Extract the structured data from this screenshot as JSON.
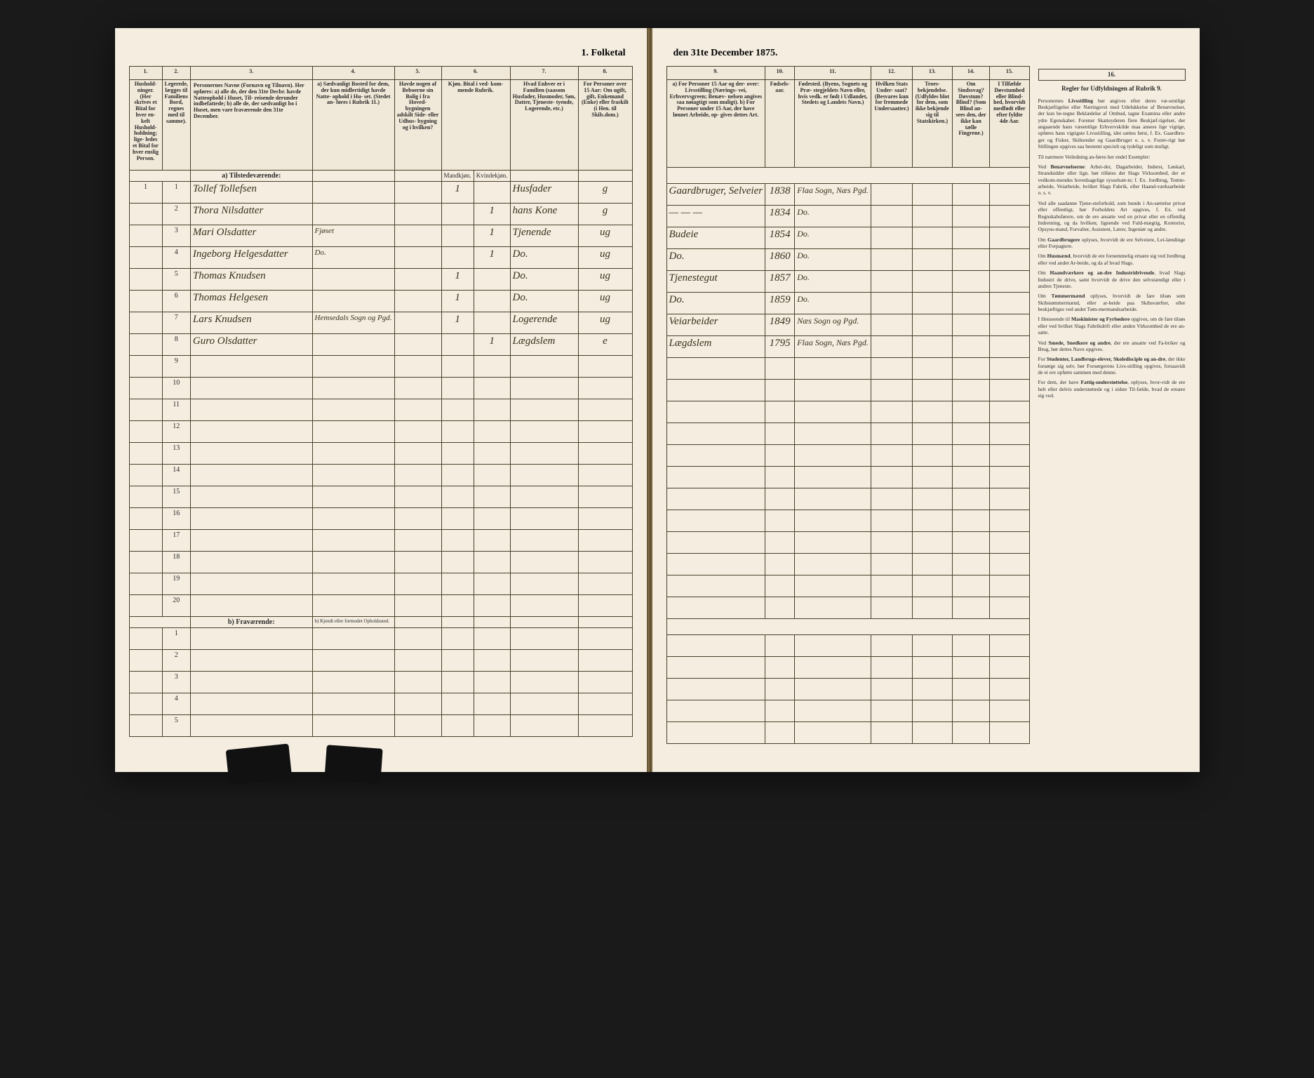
{
  "title_left": "1. Folketal",
  "title_right": "den 31te December 1875.",
  "left_columns": {
    "nums": [
      "1.",
      "2.",
      "3.",
      "4.",
      "5.",
      "6.",
      "7.",
      "8."
    ],
    "heads": [
      "Hushold-\nninger.\n(Her skrives et\nBital for hver en-\nkelt Hushold-\nholdning; lige-\nledes et Bital for\nhver enslig\nPerson.",
      "Legerede,\nlægges til\nFamiliens\nBord, regnes\nmed til\nsamme).",
      "Personernes Navne (Fornavn og Tilnavn).\nHer opføres:\na) alle de, der den 31te Decbr. havde Natteophold i Huset, Til-\nreisende derunder indbefattede;\nb) alle de, der sædvanligt bo i Huset, men vare fraværende\nden 31te December.",
      "a) Sædvanligt\nBosted for\ndem, der kun\nmidlertidigt\nhavde Natte-\nophold i Hu-\nset. (Stedet an-\nføres i Rubrik 11.)",
      "Havde nogen\naf Beboerne\nsin Bolig\ni fra Hoved-\nbygningen\nadskilt Side-\neller Udhus-\nbygning og i\nhvilken?",
      "Kjøn.\nBital i\nved-\nkom-\nmende\nRubrik.",
      "Hvad Enhver er\ni Familien\n(saasom Husfader,\nHusmoder, Søn,\nDatter, Tjeneste-\ntyende, Logerende,\netc.)",
      "For Personer\nover 15 Aar:\nOm ugift, gift,\nEnkemand\n(Enke) eller\nfraskilt\n(i Hen. til\nSkils.dom.)"
    ],
    "subheads": [
      "",
      "",
      "",
      "b) Kjendt eller\nformodet\nOpholdssted.",
      "",
      "Mandkjøn.",
      "Kvindekjøn.",
      ""
    ]
  },
  "right_columns": {
    "nums": [
      "9.",
      "10.",
      "11.",
      "12.",
      "13.",
      "14.",
      "15.",
      "16."
    ],
    "heads": [
      "a) For Personer 15 Aar og der-\nover: Livsstilling (Nærings-\nvei, Erhvervsgreen; Benæv-\nnelsen angives saa\nnøiagtigt som muligt).\nb) For Personer under 15 Aar,\nder have lønnet Arbeide, op-\ngives dettes Art.",
      "Fødsels-\naar.",
      "Fødested.\n(Byens, Sognets og Præ-\nstegjeldets Navn eller, hvis\nvedk. er født i Udlandet,\nStedets og Landets\nNavn.)",
      "Hvilken\nStats Under-\nsaat?\n(Besvares kun\nfor fremmede\nUndersaatter.)",
      "Troes-\nbekjendelse.\n(Udfyldes blot for\ndem, som ikke\nbekjende sig til\nStatskirken.)",
      "Om\nSindssvag?\nDøvstum?\nBlind?\n(Som Blind an-\nsees den, der\nikke kan tælle\nFingrene.)",
      "I Tilfælde\nDøvstumhed\neller Blind-\nhed, hvorvidt\nmedfødt\neller efter\nfyldte\n4de Aar.",
      "Regler for Udfyldningen\naf\nRubrik 9."
    ]
  },
  "section_a": "a) Tilstedeværende:",
  "section_b": "b) Fraværende:",
  "rows_a": [
    {
      "n": "1",
      "name": "Tollef Tollefsen",
      "c4": "",
      "c5": "",
      "m": "1",
      "k": "",
      "rel": "Husfader",
      "stat": "g",
      "occ": "Gaardbruger, Selveier",
      "year": "1838",
      "place": "Flaa Sogn, Næs Pgd.",
      "c12": "",
      "c13": "",
      "c14": "",
      "c15": ""
    },
    {
      "n": "2",
      "name": "Thora Nilsdatter",
      "c4": "",
      "c5": "",
      "m": "",
      "k": "1",
      "rel": "hans Kone",
      "stat": "g",
      "occ": "— — —",
      "year": "1834",
      "place": "Do.",
      "c12": "",
      "c13": "",
      "c14": "",
      "c15": ""
    },
    {
      "n": "3",
      "name": "Mari Olsdatter",
      "c4": "Fjøset",
      "c5": "",
      "m": "",
      "k": "1",
      "rel": "Tjenende",
      "stat": "ug",
      "occ": "Budeie",
      "year": "1854",
      "place": "Do.",
      "c12": "",
      "c13": "",
      "c14": "",
      "c15": ""
    },
    {
      "n": "4",
      "name": "Ingeborg Helgesdatter",
      "c4": "Do.",
      "c5": "",
      "m": "",
      "k": "1",
      "rel": "Do.",
      "stat": "ug",
      "occ": "Do.",
      "year": "1860",
      "place": "Do.",
      "c12": "",
      "c13": "",
      "c14": "",
      "c15": ""
    },
    {
      "n": "5",
      "name": "Thomas Knudsen",
      "c4": "",
      "c5": "",
      "m": "1",
      "k": "",
      "rel": "Do.",
      "stat": "ug",
      "occ": "Tjenestegut",
      "year": "1857",
      "place": "Do.",
      "c12": "",
      "c13": "",
      "c14": "",
      "c15": ""
    },
    {
      "n": "6",
      "name": "Thomas Helgesen",
      "c4": "",
      "c5": "",
      "m": "1",
      "k": "",
      "rel": "Do.",
      "stat": "ug",
      "occ": "Do.",
      "year": "1859",
      "place": "Do.",
      "c12": "",
      "c13": "",
      "c14": "",
      "c15": ""
    },
    {
      "n": "7",
      "name": "Lars Knudsen",
      "c4": "Hemsedals Sogn og Pgd.",
      "c5": "",
      "m": "1",
      "k": "",
      "rel": "Logerende",
      "stat": "ug",
      "occ": "Veiarbeider",
      "year": "1849",
      "place": "Næs Sogn og Pgd.",
      "c12": "",
      "c13": "",
      "c14": "",
      "c15": ""
    },
    {
      "n": "8",
      "name": "Guro Olsdatter",
      "c4": "",
      "c5": "",
      "m": "",
      "k": "1",
      "rel": "Lægdslem",
      "stat": "e",
      "occ": "Lægdslem",
      "year": "1795",
      "place": "Flaa Sogn, Næs Pgd.",
      "c12": "",
      "c13": "",
      "c14": "",
      "c15": ""
    }
  ],
  "empty_a": [
    "9",
    "10",
    "11",
    "12",
    "13",
    "14",
    "15",
    "16",
    "17",
    "18",
    "19",
    "20"
  ],
  "rows_b": [
    "1",
    "2",
    "3",
    "4",
    "5"
  ],
  "instructions": {
    "head": "Regler for Udfyldningen af Rubrik 9.",
    "paras": [
      "Personernes <b>Livsstilling</b> bør angives efter deres væ-sentlige Beskjæftigelse eller Næringsvei med Udelukkelse af Benævnelser, der kun be-tegne Beklædelse af Ombud, tagne Examina eller andre ydre Egenskaber. Forener Skatteyderen flere Beskjæf-tigelser, der angaaende hans væsentlige Erhvervskilde maa ansees lige vigtige, opføres hans vigtigste Livsstilling, idet sættes først, f. Ex. Gaardbru-ger og Fisker, Skibsreder og Gaardbruger o. s. v. Forøv-rigt bør Stillingen opgives saa bestemt specielt og tydeligt som muligt.",
      "Til nærmere Veiledning an-føres her endel Exempler:",
      "Ved <b>Benævnelserne</b>: Arbei-der, Dagarbeider, Inderst, Løskarl, Strandsidder eller lign. bør tilføies det Slags Virksombed, der er vedkom-mendes hovedsagelige sysselsæt-te; f. Ex. Jordbrug, Tomte-arbeide, Veiarbeide, hvilket Slags Fabrik, eller Haand-værksarbeide o. s. v.",
      "Ved alle saadanne Tjene-steforhold, som bunde i An-sættelse privat eller offentligt, bør Forholdets Art opgives, f. Ex. ved Regnskabsførere, om de ere ansatte ved en privat eller en offentlig Indretning, og da hvilken; lignende ved Fuld-mægtig, Kontorist, Opsyns-mand, Forvalter, Assistent, Lærer, Ingeniør og andre.",
      "Om <b>Gaardbrugere</b> oplyses, hvorvidt de ere Selveiere, Lei-lændinge eller Forpagtere.",
      "Om <b>Husmænd</b>, hvorvidt de ere fornemmelig ernære sig ved Jordbrug eller ved andet Ar-beide, og da af hvad Slags.",
      "Om <b>Haandværkere og an-dre Industridrivende</b>, hvad Slags Industri de drive, samt hvorvidt de drive den selvstændigt eller i andres Tjeneste.",
      "Om <b>Tømmermænd</b> oplyses, hvorvidt de fare tilsøs som Skibstømmermænd, eller ar-beide paa Skibsværfter, eller beskjæftiges ved andet Tøm-mermandsarbeide.",
      "I Henseende til <b>Maskinister og Fyrbødere</b> opgives, om de fare tilsøs eller ved hvilket Slags Fabrikdrift eller anden Virksomhed de ere an-satte.",
      "Ved <b>Smede, Snedkere og andre</b>, der ere ansatte ved Fa-briker og Brug, bør dettes Navn opgives.",
      "For <b>Studenter, Landbrugs-elever, Skoledisciple og an-dre</b>, der ikke forsørge sig selv, bør Forsørgerens Livs-stilling opgives, forsaavidt de ei ere opførte sammen med denne.",
      "For dem, der have <b>Fattig-understøttelse</b>, oplyses, hvor-vidt de ere helt eller delvis understøttede og i sidste Til-fælde, hvad de ernære sig ved."
    ]
  }
}
